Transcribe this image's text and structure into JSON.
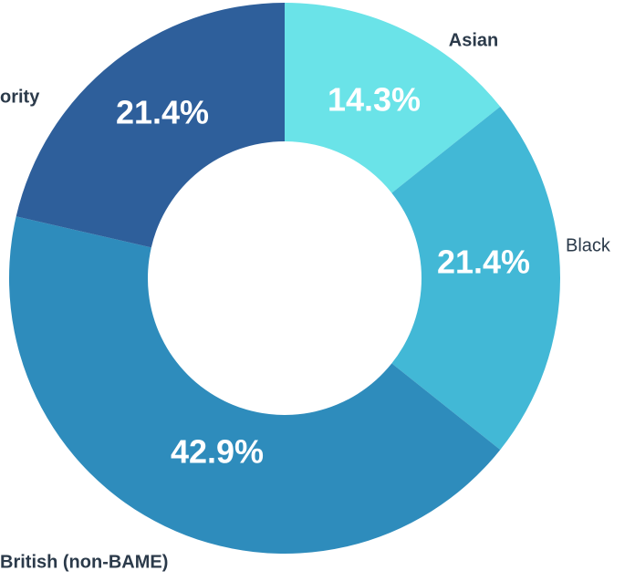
{
  "chart_data": {
    "type": "donut",
    "categories": [
      "Asian",
      "Black",
      "British (non-BAME)",
      "ority"
    ],
    "values": [
      14.3,
      21.4,
      42.9,
      21.4
    ],
    "value_labels": [
      "14.3%",
      "21.4%",
      "42.9%",
      "21.4%"
    ],
    "colors": [
      "#6ae3e8",
      "#42b8d6",
      "#2e8cbc",
      "#2e5f9b"
    ]
  }
}
